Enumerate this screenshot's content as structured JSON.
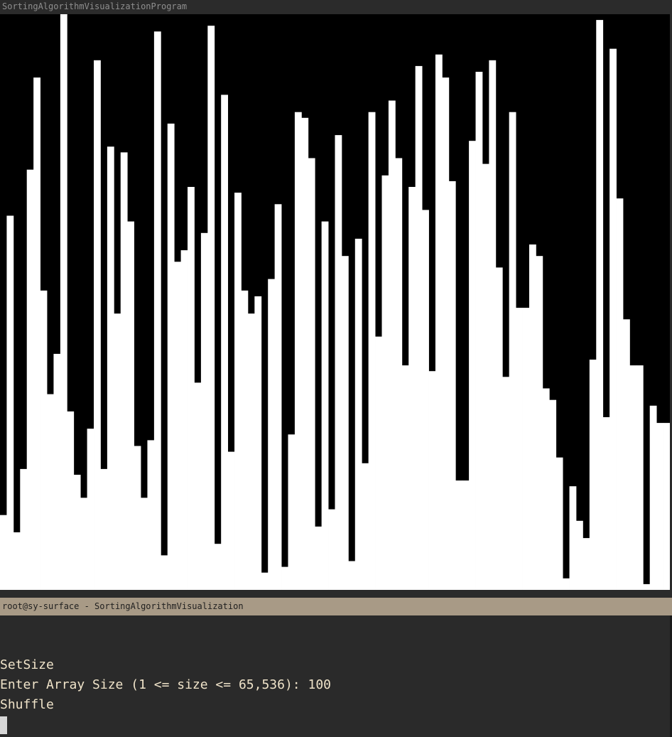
{
  "visualizer_window": {
    "title": "SortingAlgorithmVisualizationProgram"
  },
  "terminal_window": {
    "title": "root@sy-surface - SortingAlgorithmVisualization",
    "lines": [
      "SetSize",
      "Enter Array Size (1 <= size <= 65,536): 100",
      "Shuffle"
    ]
  },
  "colors": {
    "bar": "#ffffff",
    "canvas_background": "#000000",
    "terminal_background": "#2a2a2a",
    "terminal_text": "#efe3c9",
    "terminal_titlebar": "#a89a86"
  },
  "chart_data": {
    "type": "bar",
    "values": [
      13,
      65,
      10,
      21,
      73,
      89,
      52,
      34,
      41,
      100,
      31,
      20,
      16,
      28,
      92,
      21,
      77,
      48,
      76,
      64,
      25,
      16,
      26,
      97,
      6,
      81,
      57,
      59,
      70,
      36,
      62,
      98,
      8,
      86,
      24,
      69,
      52,
      48,
      51,
      3,
      54,
      67,
      4,
      27,
      83,
      82,
      75,
      11,
      64,
      14,
      79,
      58,
      5,
      61,
      22,
      83,
      44,
      72,
      85,
      75,
      39,
      70,
      91,
      66,
      38,
      93,
      89,
      71,
      19,
      19,
      78,
      90,
      74,
      92,
      56,
      37,
      83,
      49,
      49,
      60,
      58,
      35,
      33,
      23,
      2,
      18,
      12,
      9,
      40,
      99,
      30,
      94,
      68,
      47,
      39,
      39,
      1,
      32,
      29,
      29
    ]
  }
}
